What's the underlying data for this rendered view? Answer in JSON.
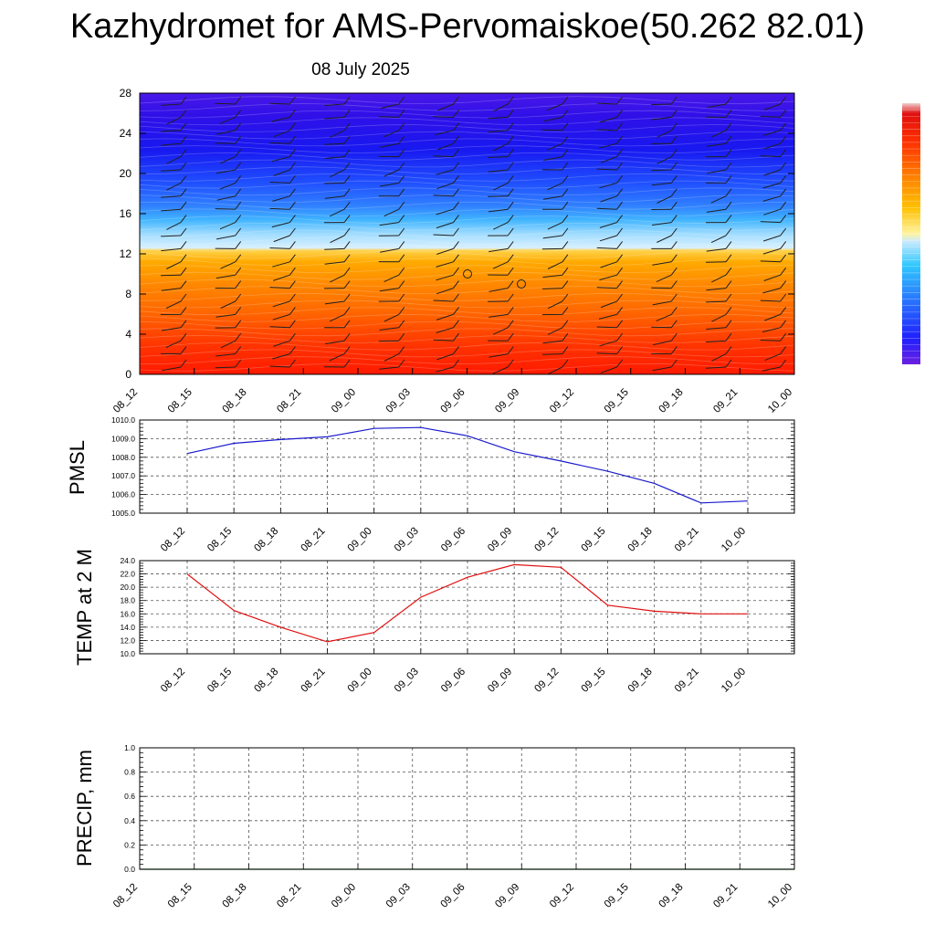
{
  "header": {
    "title": "Kazhydromet for AMS-Pervomaiskoe(50.262 82.01)",
    "date": "08 July 2025"
  },
  "colors": {
    "pmsl_line": "#1a1acc",
    "temp_line": "#e01010",
    "precip_line": "#1a6e1a"
  },
  "chart_data": [
    {
      "type": "heatmap",
      "name": "vertical-profile",
      "categories": [
        "08_12",
        "08_15",
        "08_18",
        "08_21",
        "09_00",
        "09_03",
        "09_06",
        "09_09",
        "09_12",
        "09_15",
        "09_18",
        "09_21",
        "10_00"
      ],
      "ylim": [
        0,
        28
      ],
      "yticks": [
        "0",
        "4",
        "8",
        "12",
        "16",
        "20",
        "24",
        "28"
      ],
      "colorscale": [
        "red",
        "orange",
        "yellow",
        "light blue",
        "blue",
        "violet"
      ],
      "colorbar_placement": "right",
      "wind_barbs": true
    },
    {
      "type": "line",
      "name": "pmsl",
      "ylabel": "PMSL",
      "categories": [
        "08_12",
        "08_15",
        "08_18",
        "08_21",
        "09_00",
        "09_03",
        "09_06",
        "09_09",
        "09_12",
        "09_15",
        "09_18",
        "09_21",
        "10_00"
      ],
      "values": [
        1008.2,
        1008.75,
        1008.95,
        1009.1,
        1009.55,
        1009.6,
        1009.15,
        1008.3,
        1007.8,
        1007.25,
        1006.6,
        1005.55,
        1005.65
      ],
      "ylim": [
        1005.0,
        1010.0
      ],
      "yticks": [
        "1005.0",
        "1006.0",
        "1007.0",
        "1008.0",
        "1009.0",
        "1010.0"
      ],
      "grid": true
    },
    {
      "type": "line",
      "name": "temp",
      "ylabel": "TEMP at 2 M",
      "categories": [
        "08_12",
        "08_15",
        "08_18",
        "08_21",
        "09_00",
        "09_03",
        "09_06",
        "09_09",
        "09_12",
        "09_15",
        "09_18",
        "09_21",
        "10_00"
      ],
      "values": [
        22.0,
        16.5,
        14.0,
        11.8,
        13.2,
        18.5,
        21.5,
        23.4,
        23.0,
        17.3,
        16.4,
        16.0,
        16.0
      ],
      "ylim": [
        10.0,
        24.0
      ],
      "yticks": [
        "10.0",
        "12.0",
        "14.0",
        "16.0",
        "18.0",
        "20.0",
        "22.0",
        "24.0"
      ],
      "grid": true
    },
    {
      "type": "line",
      "name": "precip",
      "ylabel": "PRECIP, mm",
      "categories": [
        "08_12",
        "08_15",
        "08_18",
        "08_21",
        "09_00",
        "09_03",
        "09_06",
        "09_09",
        "09_12",
        "09_15",
        "09_18",
        "09_21",
        "10_00"
      ],
      "values": [
        0,
        0,
        0,
        0,
        0,
        0,
        0,
        0,
        0,
        0,
        0,
        0,
        0
      ],
      "ylim": [
        0.0,
        1.0
      ],
      "yticks": [
        "0.0",
        "0.2",
        "0.4",
        "0.6",
        "0.8",
        "1.0"
      ],
      "grid": true
    }
  ]
}
